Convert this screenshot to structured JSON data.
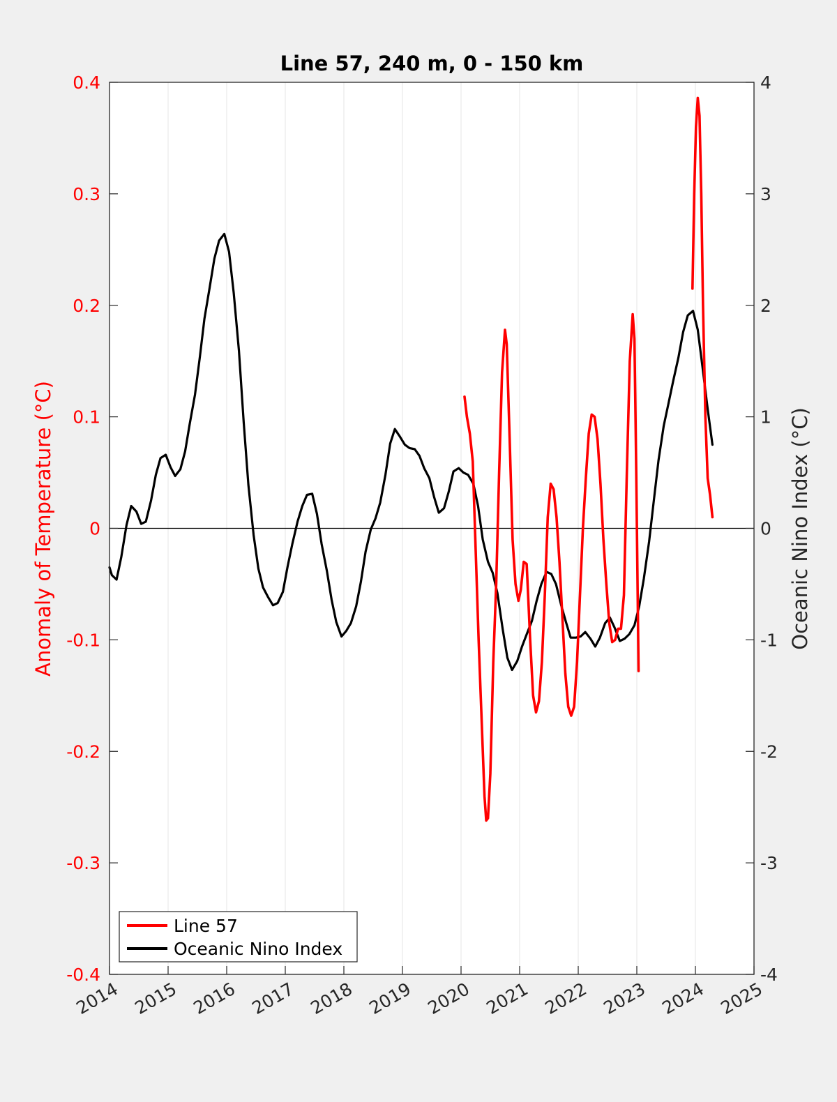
{
  "colors": {
    "background": "#f0f0f0",
    "axes": "#ffffff",
    "line57": "#ff0000",
    "oni": "#000000",
    "grid": "#e6e6e6",
    "left_axis_text": "#ff0000",
    "right_axis_text": "#262626"
  },
  "chart_data": {
    "type": "line",
    "title": "Line 57, 240 m, 0 - 150 km",
    "xlabel": "",
    "ylabel_left": "Anomaly of Temperature (°C)",
    "ylabel_right": "Oceanic Nino Index (°C)",
    "xlim": [
      2014,
      2025
    ],
    "ylim_left": [
      -0.4,
      0.4
    ],
    "ylim_right": [
      -4,
      4
    ],
    "x_ticks": [
      "2014",
      "2015",
      "2016",
      "2017",
      "2018",
      "2019",
      "2020",
      "2021",
      "2022",
      "2023",
      "2024",
      "2025"
    ],
    "y_left_ticks": [
      "-0.4",
      "-0.3",
      "-0.2",
      "-0.1",
      "0",
      "0.1",
      "0.2",
      "0.3",
      "0.4"
    ],
    "y_right_ticks": [
      "-4",
      "-3",
      "-2",
      "-1",
      "0",
      "1",
      "2",
      "3",
      "4"
    ],
    "grid": "vertical",
    "zero_line": true,
    "legend_position": "bottom-left",
    "series": [
      {
        "name": "Line 57",
        "axis": "left",
        "color": "#ff0000",
        "segments": [
          [
            [
              2020.06,
              0.118
            ],
            [
              2020.1,
              0.1
            ],
            [
              2020.15,
              0.085
            ],
            [
              2020.2,
              0.06
            ],
            [
              2020.25,
              -0.02
            ],
            [
              2020.3,
              -0.1
            ],
            [
              2020.35,
              -0.17
            ],
            [
              2020.4,
              -0.24
            ],
            [
              2020.43,
              -0.262
            ],
            [
              2020.46,
              -0.26
            ],
            [
              2020.5,
              -0.22
            ],
            [
              2020.55,
              -0.12
            ],
            [
              2020.6,
              -0.05
            ],
            [
              2020.65,
              0.05
            ],
            [
              2020.7,
              0.14
            ],
            [
              2020.75,
              0.178
            ],
            [
              2020.78,
              0.165
            ],
            [
              2020.83,
              0.08
            ],
            [
              2020.88,
              -0.01
            ],
            [
              2020.93,
              -0.05
            ],
            [
              2020.98,
              -0.065
            ],
            [
              2021.02,
              -0.055
            ],
            [
              2021.07,
              -0.03
            ],
            [
              2021.12,
              -0.032
            ],
            [
              2021.18,
              -0.1
            ],
            [
              2021.23,
              -0.15
            ],
            [
              2021.28,
              -0.165
            ],
            [
              2021.33,
              -0.155
            ],
            [
              2021.38,
              -0.12
            ],
            [
              2021.43,
              -0.06
            ],
            [
              2021.48,
              0.01
            ],
            [
              2021.53,
              0.04
            ],
            [
              2021.58,
              0.035
            ],
            [
              2021.63,
              0.01
            ],
            [
              2021.68,
              -0.03
            ],
            [
              2021.73,
              -0.08
            ],
            [
              2021.78,
              -0.13
            ],
            [
              2021.83,
              -0.16
            ],
            [
              2021.88,
              -0.168
            ],
            [
              2021.93,
              -0.16
            ],
            [
              2021.98,
              -0.12
            ],
            [
              2022.03,
              -0.06
            ],
            [
              2022.08,
              0.0
            ],
            [
              2022.13,
              0.045
            ],
            [
              2022.18,
              0.085
            ],
            [
              2022.23,
              0.102
            ],
            [
              2022.28,
              0.1
            ],
            [
              2022.33,
              0.08
            ],
            [
              2022.38,
              0.04
            ],
            [
              2022.43,
              -0.01
            ],
            [
              2022.48,
              -0.05
            ],
            [
              2022.53,
              -0.085
            ],
            [
              2022.58,
              -0.102
            ],
            [
              2022.63,
              -0.1
            ],
            [
              2022.68,
              -0.09
            ],
            [
              2022.73,
              -0.09
            ],
            [
              2022.78,
              -0.06
            ],
            [
              2022.83,
              0.05
            ],
            [
              2022.88,
              0.15
            ],
            [
              2022.93,
              0.192
            ],
            [
              2022.96,
              0.17
            ],
            [
              2022.99,
              0.05
            ],
            [
              2023.03,
              -0.128
            ]
          ],
          [
            [
              2023.95,
              0.215
            ],
            [
              2023.98,
              0.3
            ],
            [
              2024.01,
              0.36
            ],
            [
              2024.04,
              0.386
            ],
            [
              2024.07,
              0.37
            ],
            [
              2024.1,
              0.3
            ],
            [
              2024.13,
              0.2
            ],
            [
              2024.17,
              0.1
            ],
            [
              2024.21,
              0.045
            ],
            [
              2024.25,
              0.03
            ],
            [
              2024.29,
              0.01
            ]
          ]
        ]
      },
      {
        "name": "Oceanic Nino Index",
        "axis": "right",
        "color": "#000000",
        "points": [
          [
            2014.0,
            -0.35
          ],
          [
            2014.04,
            -0.42
          ],
          [
            2014.12,
            -0.46
          ],
          [
            2014.2,
            -0.26
          ],
          [
            2014.29,
            0.03
          ],
          [
            2014.37,
            0.2
          ],
          [
            2014.46,
            0.15
          ],
          [
            2014.54,
            0.04
          ],
          [
            2014.62,
            0.06
          ],
          [
            2014.71,
            0.25
          ],
          [
            2014.79,
            0.48
          ],
          [
            2014.87,
            0.63
          ],
          [
            2014.96,
            0.66
          ],
          [
            2015.04,
            0.55
          ],
          [
            2015.12,
            0.47
          ],
          [
            2015.21,
            0.53
          ],
          [
            2015.29,
            0.69
          ],
          [
            2015.37,
            0.94
          ],
          [
            2015.46,
            1.2
          ],
          [
            2015.54,
            1.53
          ],
          [
            2015.62,
            1.88
          ],
          [
            2015.71,
            2.16
          ],
          [
            2015.79,
            2.42
          ],
          [
            2015.87,
            2.58
          ],
          [
            2015.96,
            2.64
          ],
          [
            2016.04,
            2.48
          ],
          [
            2016.12,
            2.11
          ],
          [
            2016.21,
            1.59
          ],
          [
            2016.29,
            0.95
          ],
          [
            2016.37,
            0.39
          ],
          [
            2016.46,
            -0.06
          ],
          [
            2016.54,
            -0.36
          ],
          [
            2016.62,
            -0.53
          ],
          [
            2016.71,
            -0.62
          ],
          [
            2016.79,
            -0.69
          ],
          [
            2016.87,
            -0.67
          ],
          [
            2016.96,
            -0.57
          ],
          [
            2017.04,
            -0.34
          ],
          [
            2017.12,
            -0.14
          ],
          [
            2017.21,
            0.06
          ],
          [
            2017.29,
            0.2
          ],
          [
            2017.37,
            0.3
          ],
          [
            2017.46,
            0.31
          ],
          [
            2017.54,
            0.13
          ],
          [
            2017.62,
            -0.14
          ],
          [
            2017.71,
            -0.38
          ],
          [
            2017.79,
            -0.64
          ],
          [
            2017.87,
            -0.84
          ],
          [
            2017.96,
            -0.97
          ],
          [
            2018.04,
            -0.92
          ],
          [
            2018.12,
            -0.85
          ],
          [
            2018.21,
            -0.7
          ],
          [
            2018.29,
            -0.48
          ],
          [
            2018.37,
            -0.21
          ],
          [
            2018.46,
            -0.01
          ],
          [
            2018.54,
            0.09
          ],
          [
            2018.62,
            0.23
          ],
          [
            2018.71,
            0.48
          ],
          [
            2018.79,
            0.76
          ],
          [
            2018.87,
            0.89
          ],
          [
            2018.96,
            0.82
          ],
          [
            2019.04,
            0.75
          ],
          [
            2019.12,
            0.72
          ],
          [
            2019.21,
            0.71
          ],
          [
            2019.29,
            0.65
          ],
          [
            2019.37,
            0.54
          ],
          [
            2019.46,
            0.45
          ],
          [
            2019.54,
            0.28
          ],
          [
            2019.62,
            0.14
          ],
          [
            2019.71,
            0.18
          ],
          [
            2019.79,
            0.33
          ],
          [
            2019.87,
            0.51
          ],
          [
            2019.96,
            0.54
          ],
          [
            2020.04,
            0.5
          ],
          [
            2020.12,
            0.48
          ],
          [
            2020.21,
            0.4
          ],
          [
            2020.29,
            0.2
          ],
          [
            2020.37,
            -0.1
          ],
          [
            2020.46,
            -0.3
          ],
          [
            2020.54,
            -0.4
          ],
          [
            2020.62,
            -0.58
          ],
          [
            2020.71,
            -0.9
          ],
          [
            2020.79,
            -1.16
          ],
          [
            2020.87,
            -1.27
          ],
          [
            2020.96,
            -1.19
          ],
          [
            2021.04,
            -1.06
          ],
          [
            2021.12,
            -0.95
          ],
          [
            2021.21,
            -0.83
          ],
          [
            2021.29,
            -0.65
          ],
          [
            2021.37,
            -0.5
          ],
          [
            2021.46,
            -0.39
          ],
          [
            2021.54,
            -0.41
          ],
          [
            2021.62,
            -0.5
          ],
          [
            2021.71,
            -0.69
          ],
          [
            2021.79,
            -0.84
          ],
          [
            2021.87,
            -0.98
          ],
          [
            2021.96,
            -0.98
          ],
          [
            2022.04,
            -0.97
          ],
          [
            2022.12,
            -0.93
          ],
          [
            2022.21,
            -0.99
          ],
          [
            2022.29,
            -1.06
          ],
          [
            2022.37,
            -0.98
          ],
          [
            2022.46,
            -0.85
          ],
          [
            2022.54,
            -0.8
          ],
          [
            2022.62,
            -0.89
          ],
          [
            2022.71,
            -1.01
          ],
          [
            2022.79,
            -0.99
          ],
          [
            2022.87,
            -0.95
          ],
          [
            2022.96,
            -0.87
          ],
          [
            2023.04,
            -0.7
          ],
          [
            2023.12,
            -0.45
          ],
          [
            2023.21,
            -0.12
          ],
          [
            2023.29,
            0.25
          ],
          [
            2023.37,
            0.61
          ],
          [
            2023.46,
            0.92
          ],
          [
            2023.54,
            1.12
          ],
          [
            2023.62,
            1.32
          ],
          [
            2023.71,
            1.53
          ],
          [
            2023.79,
            1.76
          ],
          [
            2023.87,
            1.91
          ],
          [
            2023.96,
            1.95
          ],
          [
            2024.04,
            1.78
          ],
          [
            2024.12,
            1.45
          ],
          [
            2024.21,
            1.07
          ],
          [
            2024.29,
            0.75
          ]
        ]
      }
    ]
  }
}
